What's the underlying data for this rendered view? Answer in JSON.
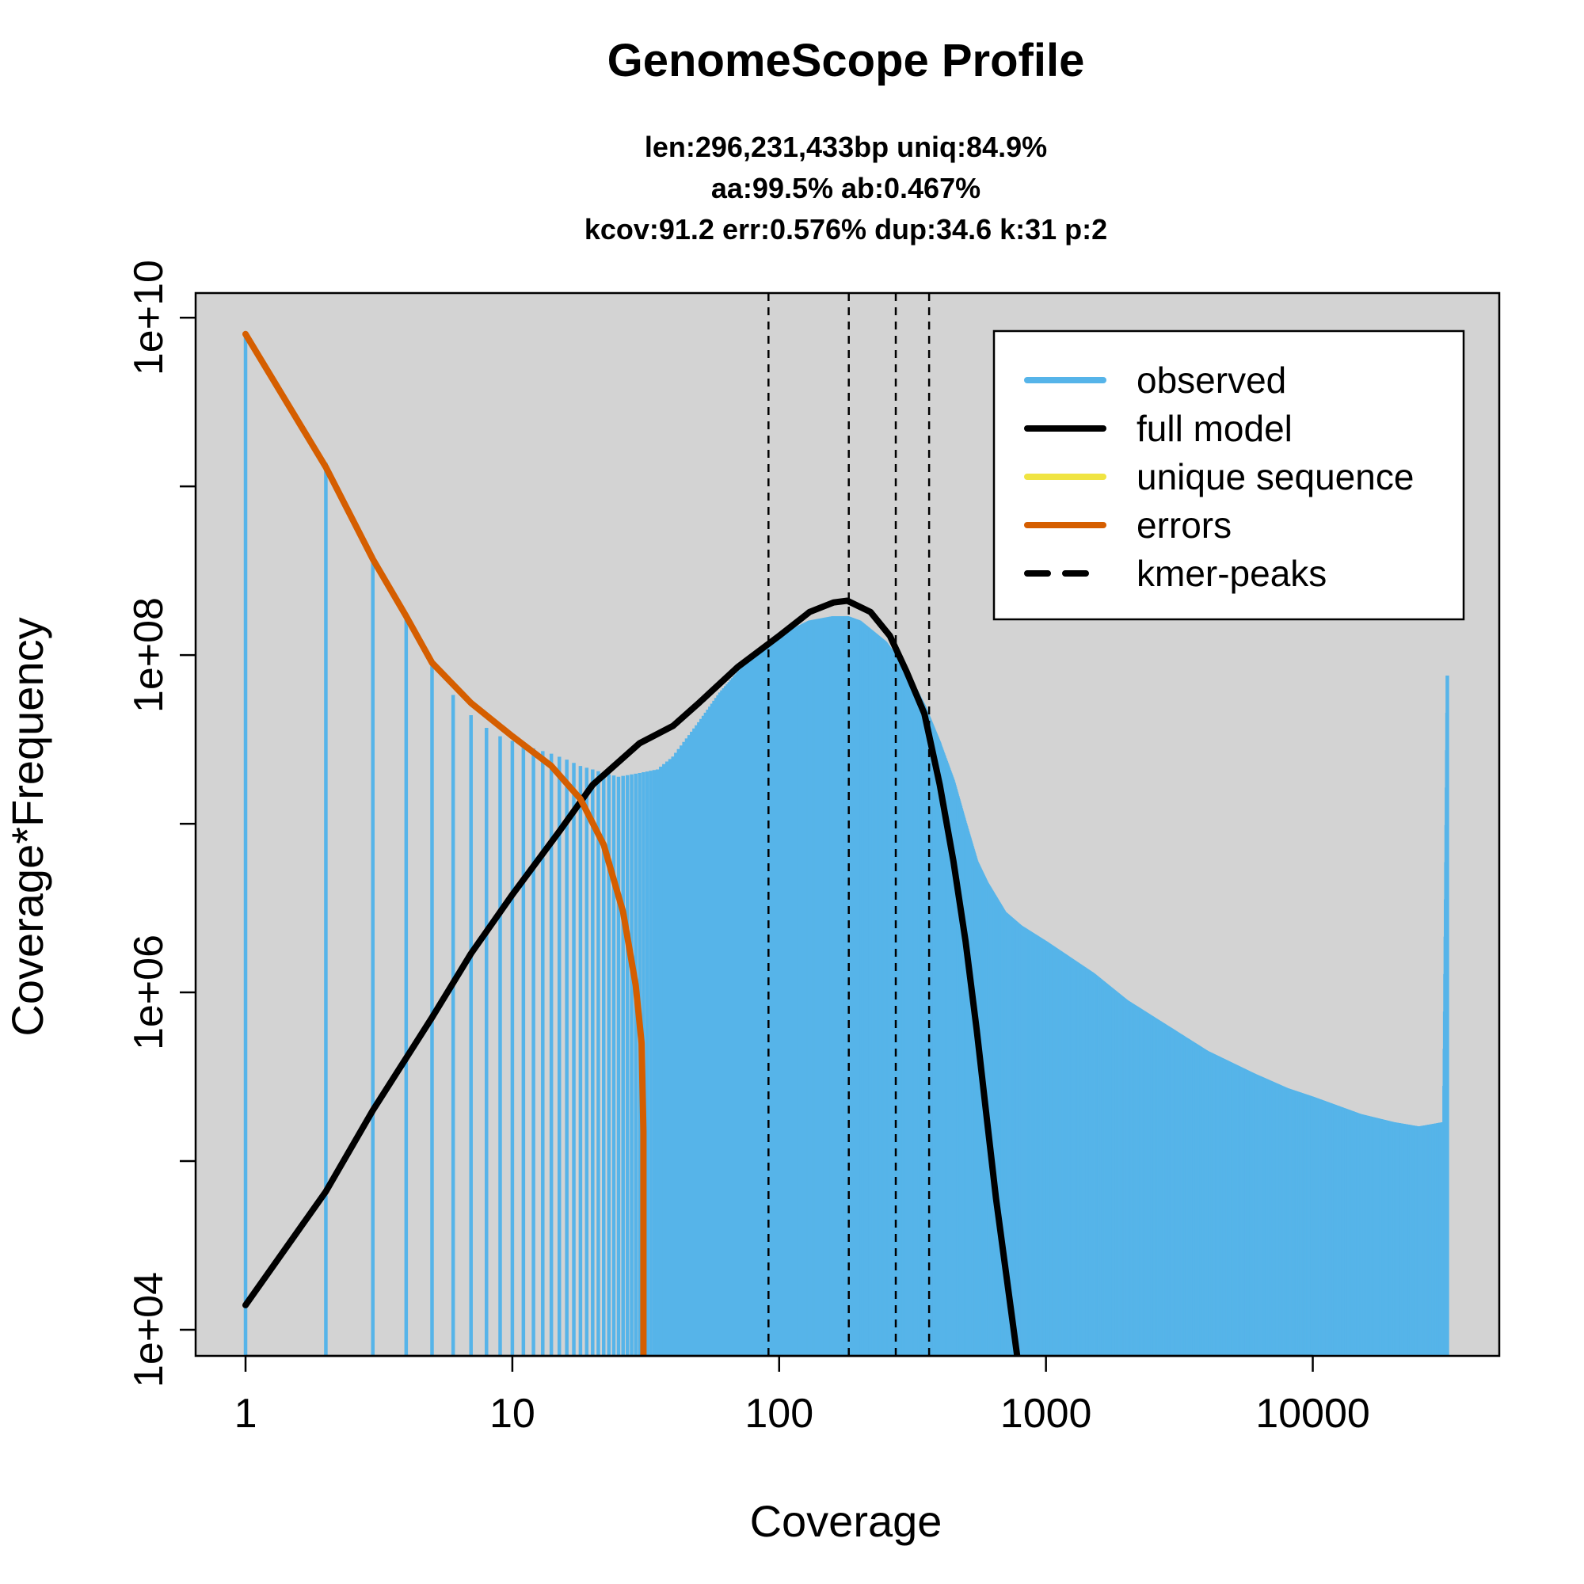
{
  "chart_data": {
    "type": "line",
    "title": "GenomeScope Profile",
    "subtitle_lines": [
      "len:296,231,433bp uniq:84.9%",
      "aa:99.5% ab:0.467%",
      "kcov:91.2 err:0.576%  dup:34.6  k:31 p:2"
    ],
    "xlabel": "Coverage",
    "ylabel": "Coverage*Frequency",
    "x_scale": "log",
    "y_scale": "log",
    "xlim": [
      0.65,
      50000
    ],
    "ylim": [
      7000,
      14000000000
    ],
    "x_ticks": [
      1,
      10,
      100,
      1000,
      10000
    ],
    "x_tick_labels": [
      "1",
      "10",
      "100",
      "1000",
      "10000"
    ],
    "y_ticks": [
      10000,
      100000,
      1000000,
      10000000,
      100000000,
      1000000000,
      10000000000
    ],
    "y_tick_labels": [
      "1e+04",
      "",
      "1e+06",
      "",
      "1e+08",
      "",
      "1e+10"
    ],
    "background": "#d3d3d3",
    "grid": false,
    "legend_position": "top-right",
    "colors": {
      "observed": "#56b4e9",
      "full_model": "#000000",
      "unique_sequence": "#f0e442",
      "errors": "#d55e00",
      "kmer_peaks": "#000000"
    },
    "legend": [
      {
        "label": "observed",
        "color": "#56b4e9",
        "style": "solid"
      },
      {
        "label": "full model",
        "color": "#000000",
        "style": "solid"
      },
      {
        "label": "unique sequence",
        "color": "#f0e442",
        "style": "solid"
      },
      {
        "label": "errors",
        "color": "#d55e00",
        "style": "solid"
      },
      {
        "label": "kmer-peaks",
        "color": "#000000",
        "style": "dashed"
      }
    ],
    "kmer_peaks": [
      91.2,
      182.4,
      273.6,
      364.8
    ],
    "series": [
      {
        "name": "observed",
        "style": "histogram",
        "points": [
          [
            1,
            8000000000
          ],
          [
            2,
            1380000000
          ],
          [
            3,
            390000000
          ],
          [
            4,
            170000000
          ],
          [
            5,
            90000000
          ],
          [
            6,
            58000000
          ],
          [
            7,
            44000000
          ],
          [
            8,
            37000000
          ],
          [
            9,
            33000000
          ],
          [
            10,
            31000000
          ],
          [
            12,
            28000000
          ],
          [
            14,
            26000000
          ],
          [
            16,
            24000000
          ],
          [
            18,
            22000000
          ],
          [
            20,
            21000000
          ],
          [
            22,
            20000000
          ],
          [
            25,
            19000000
          ],
          [
            30,
            20000000
          ],
          [
            35,
            21000000
          ],
          [
            40,
            25000000
          ],
          [
            50,
            40000000
          ],
          [
            60,
            60000000
          ],
          [
            80,
            100000000
          ],
          [
            100,
            130000000
          ],
          [
            130,
            160000000
          ],
          [
            160,
            170000000
          ],
          [
            180,
            170000000
          ],
          [
            200,
            160000000
          ],
          [
            250,
            120000000
          ],
          [
            300,
            80000000
          ],
          [
            350,
            50000000
          ],
          [
            400,
            30000000
          ],
          [
            450,
            18000000
          ],
          [
            500,
            10000000
          ],
          [
            550,
            6000000
          ],
          [
            600,
            4500000
          ],
          [
            700,
            3000000
          ],
          [
            800,
            2500000
          ],
          [
            1000,
            2000000
          ],
          [
            1500,
            1300000
          ],
          [
            2000,
            900000
          ],
          [
            3000,
            600000
          ],
          [
            4000,
            450000
          ],
          [
            6000,
            330000
          ],
          [
            8000,
            270000
          ],
          [
            10000,
            240000
          ],
          [
            15000,
            190000
          ],
          [
            20000,
            170000
          ],
          [
            25000,
            160000
          ],
          [
            31000,
            170000
          ],
          [
            31999,
            105000000
          ]
        ]
      },
      {
        "name": "full model",
        "style": "line",
        "points": [
          [
            1,
            14000
          ],
          [
            2,
            66000
          ],
          [
            3,
            200000
          ],
          [
            5,
            710000
          ],
          [
            7,
            1700000
          ],
          [
            10,
            3800000
          ],
          [
            15,
            9000000
          ],
          [
            20,
            17000000
          ],
          [
            30,
            30000000
          ],
          [
            40,
            38000000
          ],
          [
            50,
            52000000
          ],
          [
            70,
            85000000
          ],
          [
            100,
            130000000
          ],
          [
            130,
            180000000
          ],
          [
            160,
            205000000
          ],
          [
            180,
            210000000
          ],
          [
            220,
            180000000
          ],
          [
            260,
            130000000
          ],
          [
            300,
            80000000
          ],
          [
            350,
            45000000
          ],
          [
            400,
            17000000
          ],
          [
            450,
            6000000
          ],
          [
            500,
            2000000
          ],
          [
            550,
            600000
          ],
          [
            600,
            180000
          ],
          [
            650,
            60000
          ],
          [
            700,
            25000
          ],
          [
            780,
            7000
          ]
        ]
      },
      {
        "name": "errors",
        "style": "line",
        "points": [
          [
            1,
            8000000000
          ],
          [
            2,
            1300000000
          ],
          [
            3,
            370000000
          ],
          [
            4,
            170000000
          ],
          [
            5,
            90000000
          ],
          [
            7,
            52000000
          ],
          [
            10,
            33000000
          ],
          [
            14,
            22000000
          ],
          [
            18,
            14000000
          ],
          [
            22,
            7500000
          ],
          [
            26,
            3000000
          ],
          [
            29,
            1100000
          ],
          [
            30.5,
            500000
          ],
          [
            31,
            150000
          ],
          [
            31,
            7000
          ]
        ]
      }
    ]
  }
}
